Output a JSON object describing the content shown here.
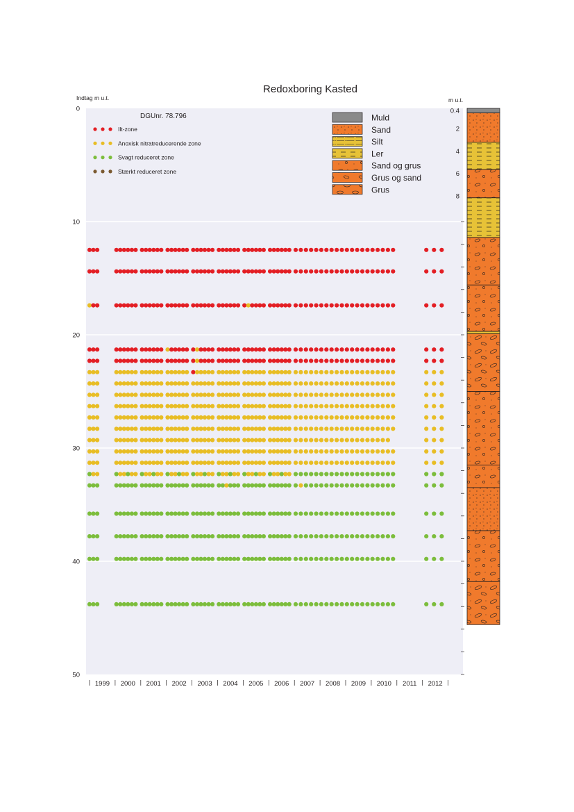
{
  "chart_data": {
    "type": "scatter",
    "title": "Redoxboring Kasted",
    "ylabel": "Indtag m u.t.",
    "ylim": [
      0,
      50
    ],
    "y_ticks": [
      "0",
      "10",
      "20",
      "30",
      "40",
      "50"
    ],
    "y_tick_values": [
      0,
      10,
      20,
      30,
      40,
      50
    ],
    "years": [
      "1999",
      "2000",
      "2001",
      "2002",
      "2003",
      "2004",
      "2005",
      "2006",
      "2007",
      "2008",
      "2009",
      "2010",
      "2011",
      "2012"
    ],
    "grid": true,
    "well_id": "DGUnr. 78.796",
    "zone_legend": [
      {
        "label": "Ilt-zone",
        "color": "#e31e24"
      },
      {
        "label": "Anoxisk nitratreducerende zone",
        "color": "#e8bd24"
      },
      {
        "label": "Svagt reduceret zone",
        "color": "#7cbd3c"
      },
      {
        "label": "Stærkt reduceret zone",
        "color": "#7b5a31"
      }
    ],
    "depths": [
      12.5,
      14.4,
      17.4,
      21.3,
      22.3,
      23.3,
      24.3,
      25.3,
      26.3,
      27.3,
      28.3,
      29.3,
      30.3,
      31.3,
      32.3,
      33.3,
      35.8,
      37.8,
      39.8,
      43.8
    ],
    "zones": [
      "ilt",
      "ilt",
      "ilt",
      "ilt",
      "ilt",
      "anoxisk",
      "anoxisk",
      "anoxisk",
      "anoxisk",
      "anoxisk",
      "anoxisk",
      "anoxisk",
      "anoxisk",
      "anoxisk",
      "mixed",
      "svagt",
      "svagt",
      "svagt",
      "svagt",
      "svagt"
    ],
    "exceptions": [
      {
        "depth": 17.4,
        "year": 1999.0,
        "zone": "anoxisk"
      },
      {
        "depth": 17.4,
        "year": 2005.2,
        "zone": "anoxisk"
      },
      {
        "depth": 21.3,
        "year": 2002.1,
        "zone": "anoxisk"
      },
      {
        "depth": 21.3,
        "year": 2003.2,
        "zone": "anoxisk"
      },
      {
        "depth": 22.3,
        "year": 2003.2,
        "zone": "anoxisk"
      },
      {
        "depth": 23.3,
        "year": 2003.1,
        "zone": "ilt"
      },
      {
        "depth": 33.3,
        "year": 2004.3,
        "zone": "anoxisk"
      },
      {
        "depth": 33.3,
        "year": 2007.2,
        "zone": "anoxisk"
      },
      {
        "depth": 39.8,
        "year": 2004.9,
        "zone": "anoxisk"
      },
      {
        "depth": 43.8,
        "year": 2004.9,
        "zone": "anoxisk"
      }
    ],
    "lithology_legend": [
      {
        "label": "Muld",
        "pattern": "muld"
      },
      {
        "label": "Sand",
        "pattern": "sand"
      },
      {
        "label": "Silt",
        "pattern": "silt"
      },
      {
        "label": "Ler",
        "pattern": "ler"
      },
      {
        "label": "Sand og grus",
        "pattern": "sandgrus"
      },
      {
        "label": "Grus og sand",
        "pattern": "grussand"
      },
      {
        "label": "Grus",
        "pattern": "grus"
      }
    ],
    "column_unit": "m u.t.",
    "column_ticks": [
      "0.4",
      "2",
      "4",
      "6",
      "8"
    ],
    "column_tick_values": [
      0.4,
      2,
      4,
      6,
      8
    ],
    "column_layers": [
      {
        "top": 0,
        "bottom": 0.4,
        "pattern": "muld"
      },
      {
        "top": 0.4,
        "bottom": 3.0,
        "pattern": "sand"
      },
      {
        "top": 3.0,
        "bottom": 5.4,
        "pattern": "ler"
      },
      {
        "top": 5.4,
        "bottom": 7.9,
        "pattern": "sandgrus"
      },
      {
        "top": 7.9,
        "bottom": 11.4,
        "pattern": "ler"
      },
      {
        "top": 11.4,
        "bottom": 15.6,
        "pattern": "sandgrus"
      },
      {
        "top": 15.6,
        "bottom": 19.7,
        "pattern": "sandgrus"
      },
      {
        "top": 19.7,
        "bottom": 19.9,
        "pattern": "ler"
      },
      {
        "top": 19.9,
        "bottom": 25.0,
        "pattern": "grussand"
      },
      {
        "top": 25.0,
        "bottom": 31.5,
        "pattern": "sandgrus"
      },
      {
        "top": 31.5,
        "bottom": 33.5,
        "pattern": "sandgrus"
      },
      {
        "top": 33.5,
        "bottom": 37.3,
        "pattern": "sand"
      },
      {
        "top": 37.3,
        "bottom": 41.8,
        "pattern": "sandgrus"
      },
      {
        "top": 41.8,
        "bottom": 45.6,
        "pattern": "grussand"
      }
    ]
  }
}
